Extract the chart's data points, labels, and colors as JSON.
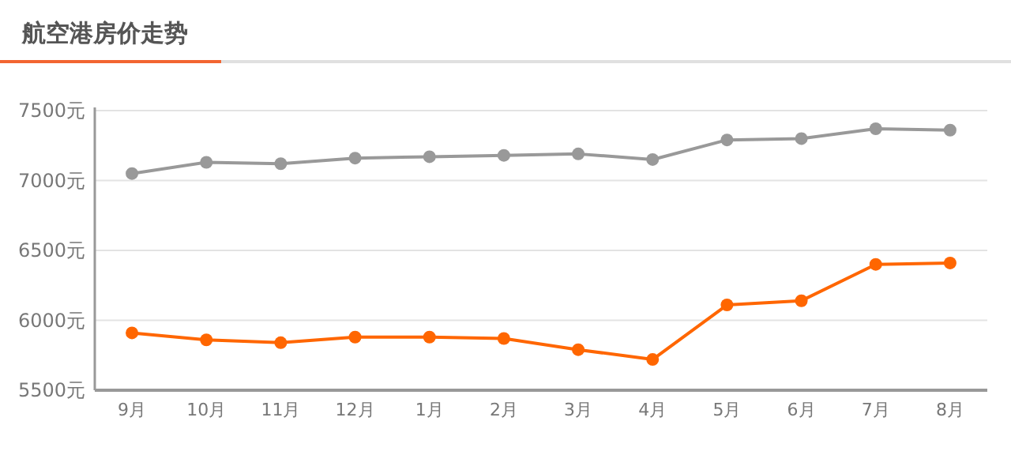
{
  "chart_data": {
    "type": "line",
    "title": "航空港房价走势",
    "categories": [
      "9月",
      "10月",
      "11月",
      "12月",
      "1月",
      "2月",
      "3月",
      "4月",
      "5月",
      "6月",
      "7月",
      "8月"
    ],
    "series": [
      {
        "color": "#999999",
        "values": [
          7050,
          7130,
          7120,
          7160,
          7170,
          7180,
          7190,
          7150,
          7290,
          7300,
          7370,
          7360
        ]
      },
      {
        "color": "#ff6600",
        "values": [
          5910,
          5860,
          5840,
          5880,
          5880,
          5870,
          5790,
          5720,
          6110,
          6140,
          6400,
          6410
        ]
      }
    ],
    "ylim": [
      5500,
      7500
    ],
    "yticks": [
      {
        "value": 5500,
        "label": "5500元"
      },
      {
        "value": 6000,
        "label": "6000元"
      },
      {
        "value": 6500,
        "label": "6500元"
      },
      {
        "value": 7000,
        "label": "7000元"
      },
      {
        "value": 7500,
        "label": "7500元"
      }
    ],
    "grid": "y",
    "marker": "circle",
    "line_style": "solid"
  }
}
